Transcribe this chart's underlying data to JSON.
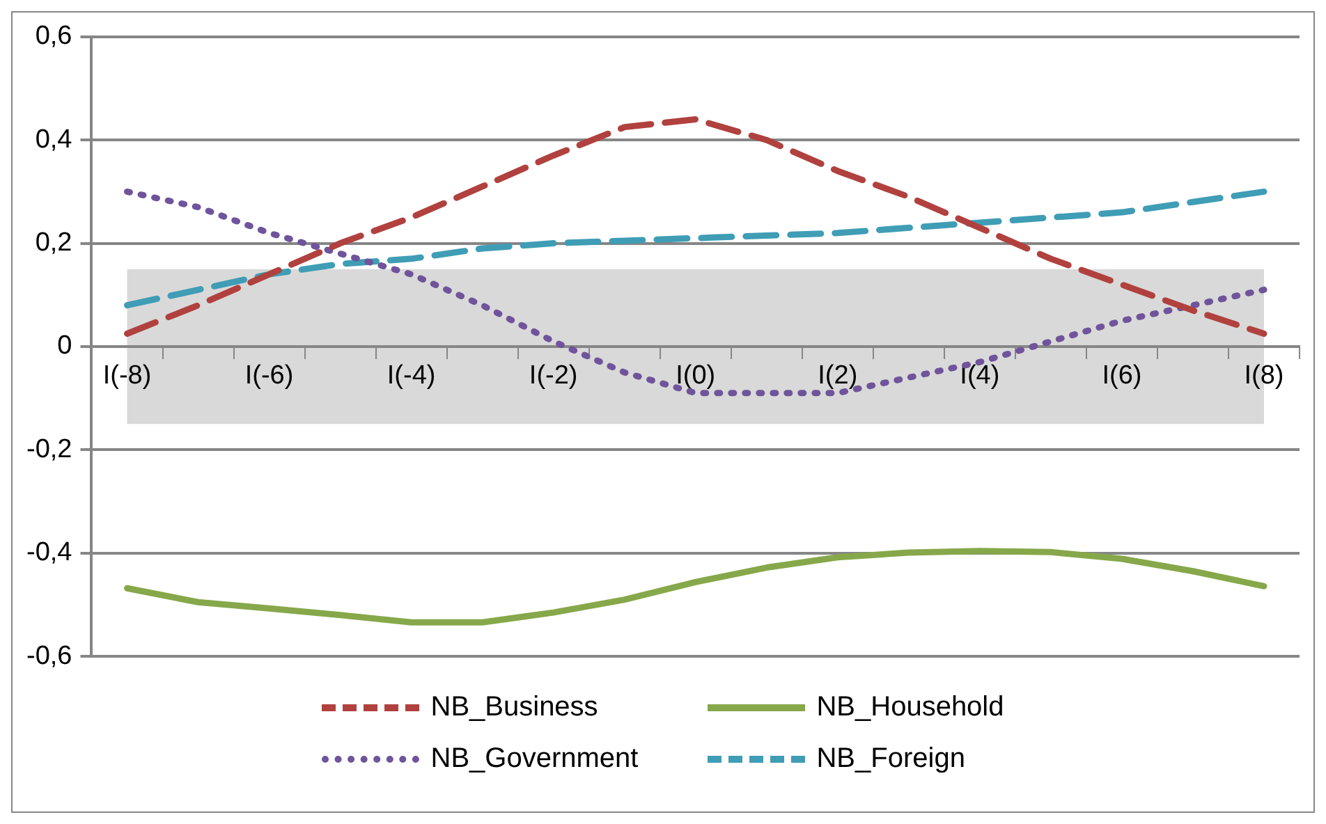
{
  "chart_data": {
    "type": "line",
    "categories": [
      "I(-8)",
      null,
      "I(-6)",
      null,
      "I(-4)",
      null,
      "I(-2)",
      null,
      "I(0)",
      null,
      "I(2)",
      null,
      "I(4)",
      null,
      "I(6)",
      null,
      "I(8)"
    ],
    "series": [
      {
        "name": "NB_Business",
        "color": "#b0413e",
        "line_style": "dashed",
        "values": [
          0.025,
          0.08,
          0.14,
          0.2,
          0.25,
          0.31,
          0.37,
          0.425,
          0.44,
          0.4,
          0.34,
          0.29,
          0.23,
          0.17,
          0.12,
          0.07,
          0.025
        ]
      },
      {
        "name": "NB_Household",
        "color": "#86a84a",
        "line_style": "solid",
        "values": [
          -0.468,
          -0.495,
          -0.507,
          -0.52,
          -0.534,
          -0.534,
          -0.515,
          -0.49,
          -0.456,
          -0.428,
          -0.408,
          -0.399,
          -0.396,
          -0.398,
          -0.411,
          -0.435,
          -0.464
        ]
      },
      {
        "name": "NB_Government",
        "color": "#6f549b",
        "line_style": "dotted",
        "values": [
          0.3,
          0.27,
          0.22,
          0.18,
          0.14,
          0.08,
          0.01,
          -0.05,
          -0.09,
          -0.09,
          -0.09,
          -0.06,
          -0.03,
          0.01,
          0.05,
          0.08,
          0.11
        ]
      },
      {
        "name": "NB_Foreign",
        "color": "#3f9db5",
        "line_style": "dashed",
        "values": [
          0.08,
          0.11,
          0.14,
          0.16,
          0.17,
          0.19,
          0.2,
          0.205,
          0.21,
          0.215,
          0.22,
          0.23,
          0.24,
          0.25,
          0.26,
          0.28,
          0.3
        ]
      }
    ],
    "ylim": [
      -0.6,
      0.6
    ],
    "yticks": [
      {
        "value": -0.6,
        "label": "-0,6"
      },
      {
        "value": -0.4,
        "label": "-0,4"
      },
      {
        "value": -0.2,
        "label": "-0,2"
      },
      0,
      {
        "value": 0.2,
        "label": "0,2"
      },
      {
        "value": 0.4,
        "label": "0,4"
      },
      {
        "value": 0.6,
        "label": "0,6"
      }
    ],
    "bands": [
      {
        "axis": "y",
        "from": -0.15,
        "to": 0.15,
        "color": "#d9d9d9"
      }
    ],
    "grid": "y",
    "legend": "bottom",
    "marker": "none"
  }
}
